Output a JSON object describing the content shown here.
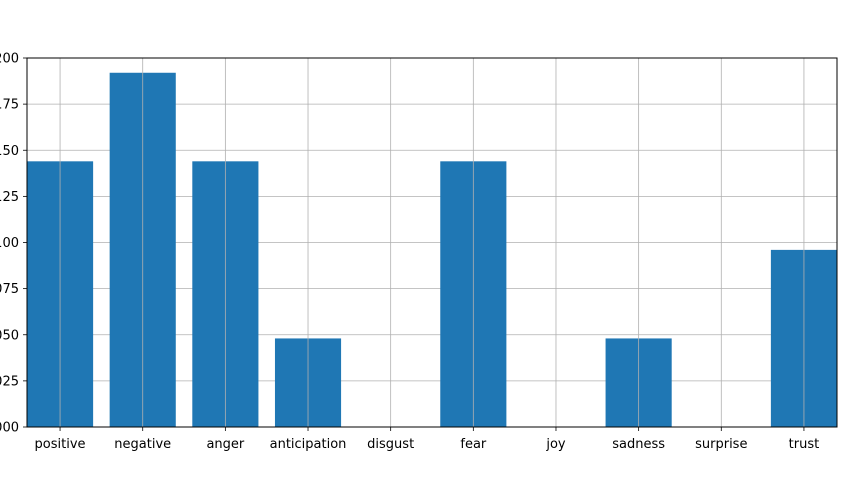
{
  "chart_data": {
    "type": "bar",
    "categories": [
      "positive",
      "negative",
      "anger",
      "anticipation",
      "disgust",
      "fear",
      "joy",
      "sadness",
      "surprise",
      "trust"
    ],
    "values": [
      0.144,
      0.192,
      0.144,
      0.048,
      0.0,
      0.144,
      0.0,
      0.048,
      0.0,
      0.096
    ],
    "ylim": [
      0,
      0.2
    ],
    "yticks": [
      0.0,
      0.025,
      0.05,
      0.075,
      0.1,
      0.125,
      0.15,
      0.175,
      0.2
    ],
    "ytick_labels": [
      "000",
      "025",
      "050",
      "075",
      "100",
      "125",
      "150",
      "175",
      "200"
    ],
    "grid": true,
    "bar_color": "#1f77b4",
    "grid_color": "#b0b0b0",
    "title": "",
    "xlabel": "",
    "ylabel": ""
  }
}
